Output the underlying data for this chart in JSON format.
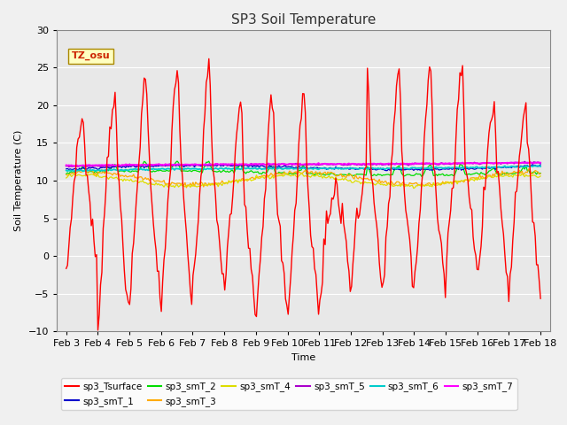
{
  "title": "SP3 Soil Temperature",
  "xlabel": "Time",
  "ylabel": "Soil Temperature (C)",
  "ylim": [
    -10,
    30
  ],
  "background_color": "#e8e8e8",
  "grid_color": "#ffffff",
  "fig_bg_color": "#f0f0f0",
  "annotation_text": "TZ_osu",
  "annotation_color": "#cc2200",
  "annotation_bg": "#ffffc0",
  "annotation_border": "#aa8800",
  "x_tick_labels": [
    "Feb 3",
    "Feb 4",
    "Feb 5",
    "Feb 6",
    "Feb 7",
    "Feb 8",
    "Feb 9",
    "Feb 10",
    "Feb 11",
    "Feb 12",
    "Feb 13",
    "Feb 14",
    "Feb 15",
    "Feb 16",
    "Feb 17",
    "Feb 18"
  ],
  "yticks": [
    -10,
    -5,
    0,
    5,
    10,
    15,
    20,
    25,
    30
  ],
  "legend_entries": [
    {
      "label": "sp3_Tsurface",
      "color": "#ff0000"
    },
    {
      "label": "sp3_smT_1",
      "color": "#0000cc"
    },
    {
      "label": "sp3_smT_2",
      "color": "#00dd00"
    },
    {
      "label": "sp3_smT_3",
      "color": "#ffaa00"
    },
    {
      "label": "sp3_smT_4",
      "color": "#dddd00"
    },
    {
      "label": "sp3_smT_5",
      "color": "#aa00cc"
    },
    {
      "label": "sp3_smT_6",
      "color": "#00cccc"
    },
    {
      "label": "sp3_smT_7",
      "color": "#ff00ff"
    }
  ]
}
